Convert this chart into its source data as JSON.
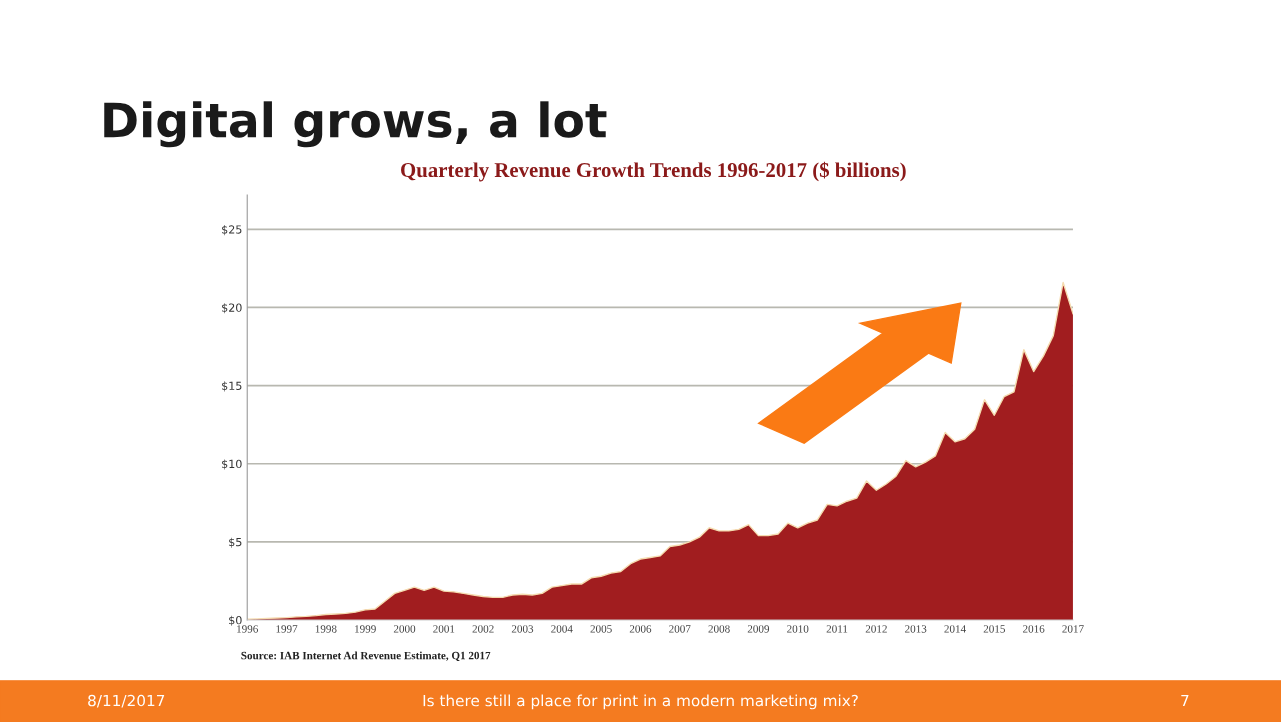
{
  "chart_data": {
    "type": "area",
    "title": "Digital grows, a lot",
    "subtitle": "Quarterly Revenue Growth Trends 1996-2017 ($ billions)",
    "x": [
      1996,
      1996.25,
      1996.5,
      1996.75,
      1997,
      1997.25,
      1997.5,
      1997.75,
      1998,
      1998.25,
      1998.5,
      1998.75,
      1999,
      1999.25,
      1999.5,
      1999.75,
      2000,
      2000.25,
      2000.5,
      2000.75,
      2001,
      2001.25,
      2001.5,
      2001.75,
      2002,
      2002.25,
      2002.5,
      2002.75,
      2003,
      2003.25,
      2003.5,
      2003.75,
      2004,
      2004.25,
      2004.5,
      2004.75,
      2005,
      2005.25,
      2005.5,
      2005.75,
      2006,
      2006.25,
      2006.5,
      2006.75,
      2007,
      2007.25,
      2007.5,
      2007.75,
      2008,
      2008.25,
      2008.5,
      2008.75,
      2009,
      2009.25,
      2009.5,
      2009.75,
      2010,
      2010.25,
      2010.5,
      2010.75,
      2011,
      2011.25,
      2011.5,
      2011.75,
      2012,
      2012.25,
      2012.5,
      2012.75,
      2013,
      2013.25,
      2013.5,
      2013.75,
      2014,
      2014.25,
      2014.5,
      2014.75,
      2015,
      2015.25,
      2015.5,
      2015.75,
      2016,
      2016.25,
      2016.5,
      2016.75,
      2017
    ],
    "values": [
      0.05,
      0.07,
      0.1,
      0.13,
      0.15,
      0.2,
      0.23,
      0.28,
      0.35,
      0.38,
      0.42,
      0.5,
      0.65,
      0.7,
      1.2,
      1.7,
      1.9,
      2.1,
      1.9,
      2.1,
      1.85,
      1.8,
      1.7,
      1.6,
      1.5,
      1.45,
      1.45,
      1.6,
      1.65,
      1.6,
      1.7,
      2.1,
      2.2,
      2.3,
      2.3,
      2.7,
      2.8,
      3.0,
      3.1,
      3.6,
      3.9,
      4.0,
      4.1,
      4.7,
      4.8,
      5.0,
      5.3,
      5.9,
      5.7,
      5.7,
      5.8,
      6.1,
      5.4,
      5.4,
      5.5,
      6.2,
      5.9,
      6.2,
      6.4,
      7.4,
      7.3,
      7.6,
      7.8,
      8.9,
      8.3,
      8.7,
      9.2,
      10.2,
      9.8,
      10.1,
      10.5,
      12.0,
      11.4,
      11.6,
      12.2,
      14.1,
      13.1,
      14.3,
      14.6,
      17.3,
      15.9,
      16.9,
      18.2,
      21.6,
      19.6
    ],
    "color": "#a11d1f",
    "xlim": [
      1996,
      2017
    ],
    "xticks": [
      1996,
      1997,
      1998,
      1999,
      2000,
      2001,
      2002,
      2003,
      2004,
      2005,
      2006,
      2007,
      2008,
      2009,
      2010,
      2011,
      2012,
      2013,
      2014,
      2015,
      2016,
      2017
    ],
    "ylim": [
      0,
      27.2
    ],
    "yticks": [
      {
        "value": 0,
        "label": "$0"
      },
      {
        "value": 5,
        "label": "$5"
      },
      {
        "value": 10,
        "label": "$10"
      },
      {
        "value": 15,
        "label": "$15"
      },
      {
        "value": 20,
        "label": "$20"
      },
      {
        "value": 25,
        "label": "$25"
      }
    ],
    "grid": "y",
    "annotations": [
      "Source: IAB Internet Ad Revenue Estimate, Q1 2017",
      "8/11/2017",
      "Is there still a place for print in a modern marketing mix?",
      "7"
    ]
  }
}
